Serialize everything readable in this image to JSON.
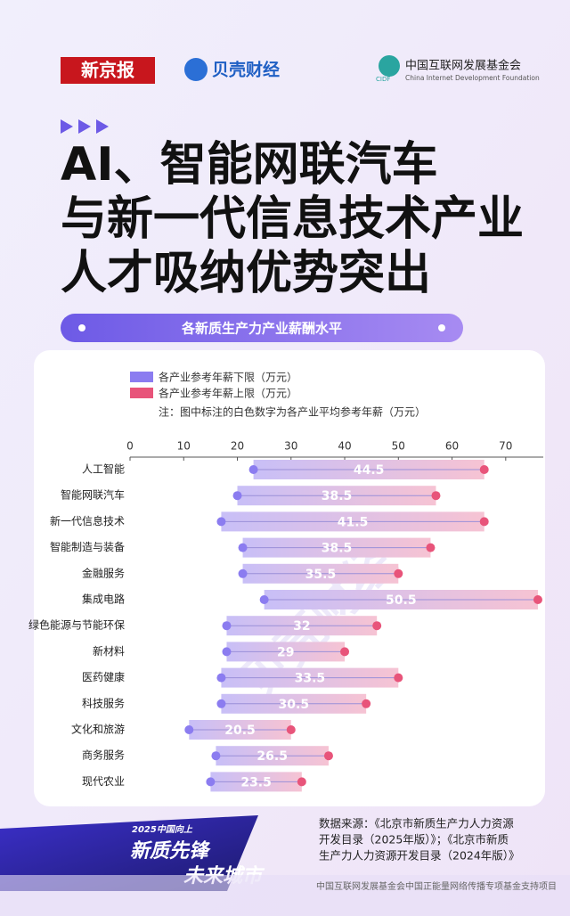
{
  "header": {
    "brand1": "新京报",
    "brand2": "贝壳财经",
    "org_cn": "中国互联网发展基金会",
    "org_abbr": "CIDF",
    "org_en": "China Internet Development Foundation"
  },
  "title_lines": [
    "AI、智能网联汽车",
    "与新一代信息技术产业",
    "人才吸纳优势突出"
  ],
  "chart_data": {
    "type": "dumbbell",
    "title": "各新质生产力产业薪酬水平",
    "note": "注：图中标注的白色数字为各产业平均参考年薪（万元）",
    "categories": [
      "人工智能",
      "智能网联汽车",
      "新一代信息技术",
      "智能制造与装备",
      "金融服务",
      "集成电路",
      "绿色能源与节能环保",
      "新材料",
      "医药健康",
      "科技服务",
      "文化和旅游",
      "商务服务",
      "现代农业"
    ],
    "series": [
      {
        "name": "各产业参考年薪下限（万元）",
        "color": "#8b7cf0",
        "values": [
          23,
          20,
          17,
          21,
          21,
          25,
          18,
          18,
          17,
          17,
          11,
          16,
          15
        ]
      },
      {
        "name": "各产业参考年薪上限（万元）",
        "color": "#e8547a",
        "values": [
          66,
          57,
          66,
          56,
          50,
          76,
          46,
          40,
          50,
          44,
          30,
          37,
          32
        ]
      }
    ],
    "mean_values": [
      44.5,
      38.5,
      41.5,
      38.5,
      35.5,
      50.5,
      32,
      29,
      33.5,
      30.5,
      20.5,
      26.5,
      23.5
    ],
    "xlim": [
      0,
      77
    ],
    "xticks": [
      0,
      10,
      20,
      30,
      40,
      50,
      60,
      70
    ],
    "grid": false
  },
  "source_lines": [
    "数据来源：《北京市新质生产力人力资源",
    "开发目录（2025年版）》；《北京市新质",
    "生产力人力资源开发目录（2024年版）》"
  ],
  "badge": {
    "top": "2025中国向上",
    "line1": "新质先锋",
    "line2": "未来城市"
  },
  "footer": "中国互联网发展基金会中国正能量网络传播专项基金支持项目"
}
